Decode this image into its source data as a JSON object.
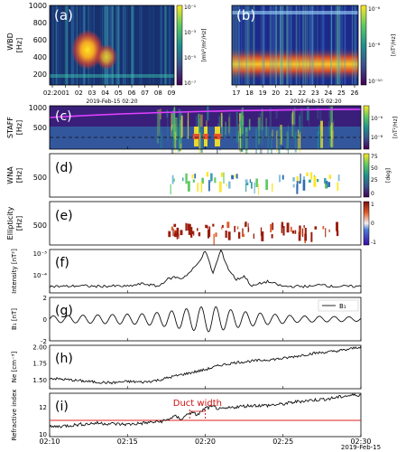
{
  "figure": {
    "wbd_a": {
      "label": "(a)",
      "ylabel": [
        "WBD",
        "[Hz]"
      ],
      "yticks": [
        "1000",
        "800",
        "600",
        "400",
        "200"
      ],
      "xticks": [
        "02:20",
        "01",
        "02",
        "03",
        "04",
        "05",
        "06",
        "07",
        "08",
        "09"
      ],
      "date_label": "2019-Feb-15 02:20",
      "cbar_ticks": [
        "10⁻¹",
        "10⁻³",
        "10⁻⁵",
        "10⁻⁷"
      ],
      "cbar_label": "[mV²/m²/Hz]"
    },
    "wbd_b": {
      "label": "(b)",
      "xticks": [
        "17",
        "18",
        "19",
        "20",
        "21",
        "22",
        "23",
        "24",
        "25",
        "26"
      ],
      "date_label": "2019-Feb-15 02:20",
      "cbar_ticks": [
        "10⁻⁶",
        "10⁻⁸",
        "10⁻¹⁰"
      ],
      "cbar_label": "[nT²/Hz]"
    },
    "panel_c": {
      "label": "(c)",
      "ylabel": [
        "STAFF",
        "[Hz]"
      ],
      "yticks": [
        "1000",
        "500"
      ],
      "cbar_ticks": [
        "10⁻⁶",
        "10⁻⁸"
      ],
      "cbar_label": "[nT²/Hz]"
    },
    "panel_d": {
      "label": "(d)",
      "ylabel": [
        "WNA",
        "[Hz]"
      ],
      "yticks": [
        "500"
      ],
      "cbar_ticks": [
        "75",
        "50",
        "25",
        "0"
      ],
      "cbar_label": "[deg]"
    },
    "panel_e": {
      "label": "(e)",
      "ylabel": [
        "Ellipticity",
        "[Hz]"
      ],
      "yticks": [
        "500"
      ],
      "cbar_ticks": [
        "1",
        "0",
        "-1"
      ]
    },
    "time_axis": {
      "ticks": [
        "02:10",
        "02:15",
        "02:20",
        "02:25",
        "02:30"
      ],
      "date_label": "2019-Feb-15"
    },
    "annotation": "Duct width",
    "colors": {
      "line": "#111111",
      "threshold": "#e02020",
      "fh_line": "#e040ff",
      "annotation": "#d01010"
    }
  },
  "chart_data": [
    {
      "panel": "(f)",
      "type": "line",
      "ylabel": "Intensity [nT²]",
      "yscale": "log",
      "yticks": [
        "10⁻³",
        "10⁻⁴"
      ],
      "ylim": [
        1.5e-05,
        0.0015
      ],
      "xlim": [
        "02:10",
        "02:30"
      ],
      "x_minutes": [
        0,
        1,
        2,
        3,
        4,
        5,
        6,
        7,
        7.5,
        8,
        8.5,
        9,
        9.5,
        10,
        10.5,
        11,
        11.5,
        12,
        12.5,
        13,
        13.5,
        14,
        15,
        16,
        17,
        17.5,
        18,
        19,
        20
      ],
      "values": [
        3e-05,
        3e-05,
        3.2e-05,
        3e-05,
        3.1e-05,
        3e-05,
        4e-05,
        3e-05,
        6e-05,
        8e-05,
        7e-05,
        0.00013,
        0.00032,
        0.0013,
        0.00012,
        0.0014,
        0.00018,
        6e-05,
        9e-05,
        3e-05,
        4e-05,
        5e-05,
        3e-05,
        3e-05,
        3e-05,
        4e-05,
        3e-05,
        3e-05,
        3e-05
      ]
    },
    {
      "panel": "(g)",
      "type": "line",
      "ylabel": "B₁ [nT]",
      "yticks": [
        "2",
        "0",
        "-2"
      ],
      "ylim": [
        -2,
        2
      ],
      "xlim": [
        "02:10",
        "02:30"
      ],
      "legend": [
        "B₁"
      ],
      "legend_position": "top-right",
      "series": [
        {
          "name": "B₁",
          "envelope_x": [
            0,
            3,
            6,
            7.5,
            8.5,
            9.5,
            10.5,
            11.5,
            12.5,
            14,
            16,
            20
          ],
          "envelope_amp": [
            0.3,
            0.4,
            0.5,
            0.7,
            0.9,
            1.1,
            1.2,
            0.9,
            0.7,
            0.5,
            0.3,
            0.2
          ]
        }
      ]
    },
    {
      "panel": "(h)",
      "type": "line",
      "ylabel": "Ne [cm⁻³]",
      "yticks": [
        "2.00",
        "1.75",
        "1.50"
      ],
      "ylim": [
        1.36,
        2.02
      ],
      "xlim": [
        "02:10",
        "02:30"
      ],
      "x_minutes": [
        0,
        1,
        2,
        3,
        4,
        5,
        6,
        7,
        8,
        9,
        10,
        11,
        12,
        13,
        14,
        15,
        16,
        17,
        18,
        19,
        20
      ],
      "values": [
        1.52,
        1.5,
        1.48,
        1.46,
        1.45,
        1.47,
        1.46,
        1.49,
        1.55,
        1.6,
        1.65,
        1.72,
        1.76,
        1.78,
        1.8,
        1.82,
        1.86,
        1.9,
        1.92,
        1.95,
        2.0
      ]
    },
    {
      "panel": "(i)",
      "type": "line",
      "ylabel": "Refractive index",
      "yticks": [
        "12",
        "10"
      ],
      "ylim": [
        9.8,
        13.0
      ],
      "xlim": [
        "02:10",
        "02:30"
      ],
      "xticks": [
        "02:10",
        "02:15",
        "02:20",
        "02:25",
        "02:30"
      ],
      "threshold": 11.0,
      "duct_bounds": [
        "02:19:00",
        "02:20:00"
      ],
      "x_minutes": [
        0,
        1,
        2,
        3,
        4,
        5,
        6,
        7,
        7.5,
        8,
        8.5,
        9,
        9.5,
        10,
        10.5,
        11,
        12,
        13,
        14,
        15,
        16,
        17,
        18,
        19,
        20
      ],
      "values": [
        10.5,
        10.6,
        10.7,
        10.8,
        10.75,
        10.7,
        10.8,
        10.9,
        11.0,
        11.3,
        11.1,
        11.6,
        11.4,
        11.9,
        12.0,
        11.8,
        12.0,
        12.1,
        12.1,
        12.2,
        12.4,
        12.5,
        12.6,
        12.8,
        12.9
      ]
    }
  ]
}
